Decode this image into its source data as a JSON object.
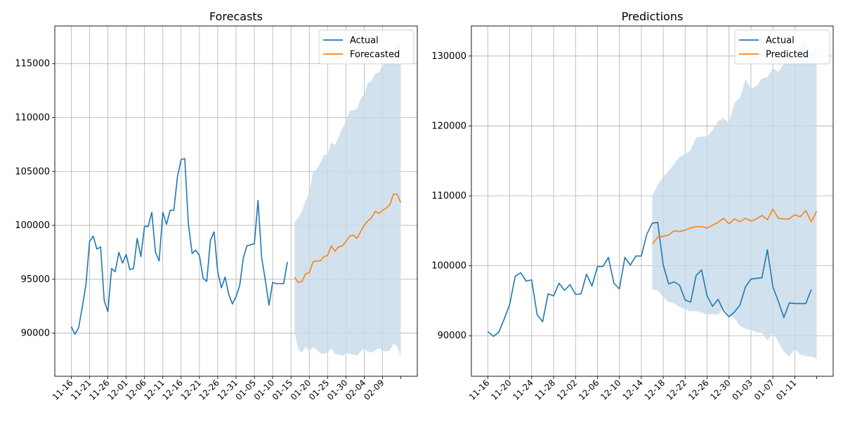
{
  "chart_data": [
    {
      "type": "line",
      "title": "Forecasts",
      "xlabel": "",
      "ylabel": "",
      "x_tick_labels": [
        "11-16",
        "11-21",
        "11-26",
        "12-01",
        "12-06",
        "12-11",
        "12-16",
        "12-21",
        "12-26",
        "12-31",
        "01-05",
        "01-10",
        "01-15",
        "01-20",
        "01-25",
        "01-30",
        "02-04",
        "02-09"
      ],
      "ylim": [
        86000,
        118500
      ],
      "y_ticks": [
        90000,
        95000,
        100000,
        105000,
        110000,
        115000
      ],
      "grid": true,
      "legend_position": "top-right",
      "legend": [
        "Actual",
        "Forecasted"
      ],
      "colors": {
        "actual": "#1f77b4",
        "forecast": "#ff7f0e",
        "band": "#c6dbea"
      },
      "series": [
        {
          "name": "Actual",
          "start_date": "2023-11-16",
          "values": [
            90600,
            89900,
            90500,
            92400,
            94500,
            98500,
            99000,
            97800,
            98000,
            93000,
            92000,
            96000,
            95700,
            97500,
            96500,
            97300,
            95900,
            96000,
            98800,
            97100,
            99900,
            99900,
            101200,
            97500,
            96700,
            101200,
            100100,
            101400,
            101400,
            104500,
            106100,
            106200,
            100100,
            97400,
            97700,
            97200,
            95100,
            94800,
            98600,
            99400,
            95700,
            94200,
            95200,
            93600,
            92700,
            93400,
            94400,
            97000,
            98100,
            98200,
            98300,
            102300,
            97000,
            94900,
            92600,
            94700,
            94600,
            94600,
            94600,
            96600
          ]
        },
        {
          "name": "Forecasted",
          "start_date": "2024-01-16",
          "values": [
            95200,
            94700,
            94800,
            95500,
            95600,
            96600,
            96700,
            96700,
            97100,
            97200,
            98100,
            97600,
            98000,
            98100,
            98500,
            99000,
            99100,
            98800,
            99400,
            100000,
            100400,
            100700,
            101300,
            101100,
            101400,
            101600,
            101900,
            102900,
            102900,
            102100
          ],
          "band_upper": [
            100300,
            100700,
            101300,
            102300,
            103000,
            104900,
            105200,
            105800,
            106500,
            106600,
            107700,
            107400,
            108200,
            109000,
            109600,
            110600,
            110700,
            110800,
            111700,
            112200,
            113200,
            113400,
            114100,
            114200,
            114800,
            115100,
            115400,
            116100,
            117000,
            116600
          ],
          "band_lower": [
            90000,
            88500,
            88200,
            88700,
            88300,
            88700,
            88500,
            88100,
            88100,
            88200,
            88600,
            88100,
            88000,
            87900,
            88100,
            88100,
            88000,
            87900,
            88300,
            88600,
            88300,
            88200,
            88400,
            88600,
            88400,
            88300,
            88400,
            89000,
            88800,
            87800
          ]
        }
      ]
    },
    {
      "type": "line",
      "title": "Predictions",
      "xlabel": "",
      "ylabel": "",
      "x_tick_labels": [
        "11-16",
        "11-20",
        "11-24",
        "11-28",
        "12-02",
        "12-06",
        "12-10",
        "12-14",
        "12-18",
        "12-22",
        "12-26",
        "12-30",
        "01-03",
        "01-07",
        "01-11"
      ],
      "ylim": [
        84200,
        134300
      ],
      "y_ticks": [
        90000,
        100000,
        110000,
        120000,
        130000
      ],
      "grid": true,
      "legend_position": "top-right",
      "legend": [
        "Actual",
        "Predicted"
      ],
      "colors": {
        "actual": "#1f77b4",
        "forecast": "#ff7f0e",
        "band": "#c6dbea"
      },
      "series": [
        {
          "name": "Actual",
          "start_date": "2023-11-16",
          "values": [
            90600,
            89900,
            90500,
            92400,
            94500,
            98500,
            99000,
            97800,
            98000,
            93000,
            92000,
            96000,
            95700,
            97500,
            96500,
            97300,
            95900,
            96000,
            98800,
            97100,
            99900,
            99900,
            101200,
            97500,
            96700,
            101200,
            100100,
            101400,
            101400,
            104500,
            106100,
            106200,
            100100,
            97400,
            97700,
            97200,
            95100,
            94800,
            98600,
            99400,
            95700,
            94200,
            95200,
            93600,
            92700,
            93400,
            94400,
            97000,
            98100,
            98200,
            98300,
            102300,
            97000,
            94900,
            92600,
            94700,
            94600,
            94600,
            94600,
            96600
          ]
        },
        {
          "name": "Predicted",
          "start_date": "2023-12-16",
          "values": [
            103100,
            104100,
            104200,
            104400,
            105000,
            104900,
            105100,
            105400,
            105600,
            105600,
            105400,
            105800,
            106200,
            106800,
            106000,
            106700,
            106300,
            106800,
            106400,
            106700,
            107200,
            106600,
            108100,
            106800,
            106700,
            106700,
            107300,
            107000,
            107900,
            106300,
            107800
          ],
          "band_upper": [
            110000,
            111600,
            112700,
            113600,
            114600,
            115600,
            115900,
            116600,
            118300,
            118500,
            118500,
            119400,
            120700,
            121100,
            120400,
            123300,
            124000,
            126700,
            125300,
            125700,
            126800,
            127000,
            128300,
            127700,
            128900,
            129800,
            130500,
            131300,
            132400,
            130400,
            131300
          ],
          "band_lower": [
            96600,
            96500,
            95500,
            94800,
            94600,
            94100,
            93800,
            93500,
            93500,
            93300,
            93000,
            93100,
            93000,
            94000,
            93000,
            92500,
            91400,
            91000,
            90800,
            90500,
            90400,
            89300,
            90500,
            89100,
            87700,
            87000,
            88200,
            87300,
            87100,
            87000,
            86700
          ]
        }
      ]
    }
  ]
}
